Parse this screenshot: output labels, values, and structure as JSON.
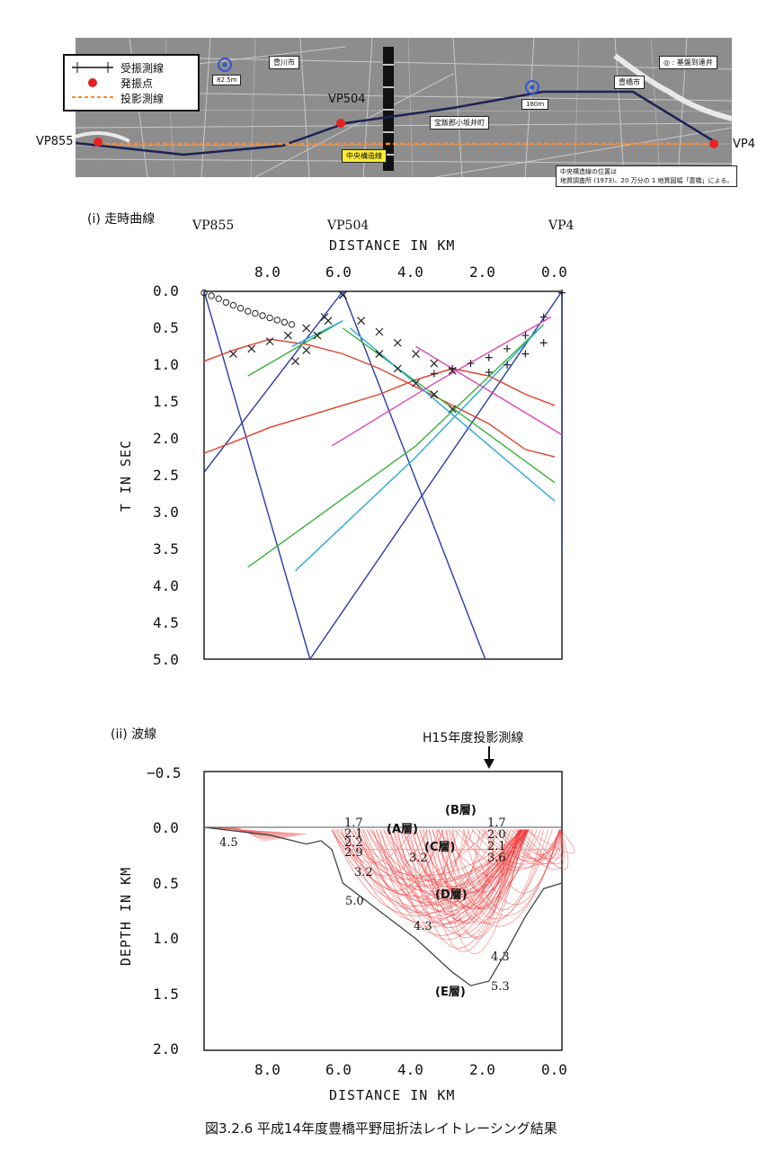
{
  "map": {
    "legend": {
      "receiver_line": "受振測線",
      "shot_point": "発振点",
      "projection_line": "投影測線"
    },
    "labels": {
      "vp855": "VP855",
      "vp504": "VP504",
      "vp4": "VP4",
      "toyokawa": "豊川市",
      "toyohashi": "豊橋市",
      "kosakai": "宝飯郡小坂井町",
      "fault_line": "中央構造線",
      "well_legend": "◎ : 基盤到達井",
      "well1_depth": "82.5m",
      "well2_depth": "180m",
      "note_line1": "中央構造線の位置は",
      "note_line2": "地質調査所 (1973)、20 万分の 1 地質図幅「豊橋」による。"
    }
  },
  "section_i": {
    "label": "(i)  走時曲線",
    "vp_labels": {
      "vp855": "VP855",
      "vp504": "VP504",
      "vp4": "VP4"
    },
    "x_axis_label": "DISTANCE  IN  KM",
    "y_axis_label": "T  IN  SEC",
    "x_ticks": [
      "8.0",
      "6.0",
      "4.0",
      "2.0",
      "0.0"
    ],
    "y_ticks": [
      "0.0",
      "0.5",
      "1.0",
      "1.5",
      "2.0",
      "2.5",
      "3.0",
      "3.5",
      "4.0",
      "4.5",
      "5.0"
    ]
  },
  "section_ii": {
    "label": "(ii)  波線",
    "projection_label": "H15年度投影測線",
    "x_axis_label": "DISTANCE  IN  KM",
    "y_axis_label": "DEPTH  IN  KM",
    "x_ticks": [
      "8.0",
      "6.0",
      "4.0",
      "2.0",
      "0.0"
    ],
    "y_ticks": [
      "−0.5",
      "0.0",
      "0.5",
      "1.0",
      "1.5",
      "2.0"
    ],
    "layers": {
      "A": "(A層)",
      "B": "(B層)",
      "C": "(C層)",
      "D": "(D層)",
      "E": "(E層)"
    },
    "velocities": {
      "v17a": "1.7",
      "v21a": "2.1",
      "v22": "2.2",
      "v29": "2.9",
      "v32a": "3.2",
      "v50": "5.0",
      "v45": "4.5",
      "v32b": "3.2",
      "v43a": "4.3",
      "v17b": "1.7",
      "v20": "2.0",
      "v21b": "2.1",
      "v36": "3.6",
      "v43b": "4.3",
      "v53": "5.3"
    }
  },
  "caption": "図3.2.6  平成14年度豊橋平野屈折法レイトレーシング結果",
  "chart_data": [
    {
      "type": "line",
      "title": "走時曲線",
      "xlabel": "DISTANCE IN KM",
      "ylabel": "T IN SEC",
      "xlim": [
        9.8,
        0.0
      ],
      "ylim": [
        0.0,
        5.0
      ],
      "x_reversed": true,
      "y_reversed": true,
      "series": [
        {
          "color": "#2b3aa8",
          "x": [
            9.8,
            6.9
          ],
          "y": [
            0.0,
            5.0
          ]
        },
        {
          "color": "#2b3aa8",
          "x": [
            9.8,
            6.0
          ],
          "y": [
            2.46,
            0.0
          ]
        },
        {
          "color": "#2b3aa8",
          "x": [
            6.0,
            2.1
          ],
          "y": [
            0.0,
            5.0
          ]
        },
        {
          "color": "#2b3aa8",
          "x": [
            0.0,
            6.9
          ],
          "y": [
            0.0,
            5.0
          ]
        },
        {
          "color": "#2b3aa8",
          "x": [
            0.0,
            0.0
          ],
          "y": [
            0.0,
            3.55
          ]
        },
        {
          "color": "#e0402a",
          "x": [
            9.8,
            9.0,
            8.0,
            7.0,
            6.0,
            5.0,
            4.0,
            3.0,
            2.0,
            1.0,
            0.2
          ],
          "y": [
            0.95,
            0.8,
            0.65,
            0.72,
            0.85,
            1.05,
            1.3,
            1.55,
            1.8,
            2.15,
            2.25
          ]
        },
        {
          "color": "#e0402a",
          "x": [
            9.8,
            9.0,
            8.0,
            7.0,
            6.0,
            5.0,
            4.0,
            3.0,
            2.0,
            1.0,
            0.2
          ],
          "y": [
            2.2,
            2.05,
            1.85,
            1.7,
            1.55,
            1.4,
            1.2,
            1.05,
            1.15,
            1.4,
            1.55
          ]
        },
        {
          "color": "#3bb03b",
          "x": [
            8.6,
            6.0
          ],
          "y": [
            1.15,
            0.4
          ]
        },
        {
          "color": "#3bb03b",
          "x": [
            8.6,
            4.0,
            0.5
          ],
          "y": [
            3.75,
            2.1,
            0.45
          ]
        },
        {
          "color": "#3bb03b",
          "x": [
            6.0,
            0.2
          ],
          "y": [
            0.5,
            2.6
          ]
        },
        {
          "color": "#2aa8d8",
          "x": [
            7.4,
            6.0
          ],
          "y": [
            0.75,
            0.4
          ]
        },
        {
          "color": "#2aa8d8",
          "x": [
            7.3,
            4.0,
            0.6
          ],
          "y": [
            3.8,
            2.25,
            0.5
          ]
        },
        {
          "color": "#2aa8d8",
          "x": [
            5.8,
            0.2
          ],
          "y": [
            0.5,
            2.85
          ]
        },
        {
          "color": "#e045b8",
          "x": [
            6.3,
            3.5,
            0.3
          ],
          "y": [
            2.1,
            1.25,
            0.35
          ]
        },
        {
          "color": "#e045b8",
          "x": [
            4.0,
            0.0
          ],
          "y": [
            0.75,
            1.95
          ]
        }
      ],
      "picks": [
        {
          "marker": "o",
          "x": [
            9.8,
            9.6,
            9.4,
            9.2,
            9.0,
            8.8,
            8.6,
            8.4,
            8.2,
            8.0,
            7.8,
            7.6,
            7.4
          ],
          "y": [
            0.02,
            0.06,
            0.1,
            0.15,
            0.19,
            0.23,
            0.27,
            0.3,
            0.33,
            0.36,
            0.39,
            0.42,
            0.45
          ]
        },
        {
          "marker": "x",
          "x": [
            9.0,
            8.5,
            8.0,
            7.5,
            7.0,
            6.5,
            6.0
          ],
          "y": [
            0.85,
            0.78,
            0.68,
            0.6,
            0.5,
            0.35,
            0.05
          ]
        },
        {
          "marker": "x",
          "x": [
            7.3,
            7.0,
            6.7,
            6.4
          ],
          "y": [
            0.95,
            0.8,
            0.6,
            0.4
          ]
        },
        {
          "marker": "x",
          "x": [
            6.0,
            5.5,
            5.0,
            4.5,
            4.0,
            3.5,
            3.0
          ],
          "y": [
            0.05,
            0.4,
            0.55,
            0.7,
            0.85,
            0.98,
            1.08
          ]
        },
        {
          "marker": "x",
          "x": [
            5.0,
            4.5,
            4.0,
            3.5,
            3.0
          ],
          "y": [
            0.85,
            1.05,
            1.25,
            1.4,
            1.6
          ]
        },
        {
          "marker": "+",
          "x": [
            0.0,
            0.5,
            1.0,
            1.5,
            2.0,
            2.5,
            3.0,
            3.5
          ],
          "y": [
            0.02,
            0.35,
            0.6,
            0.78,
            0.9,
            0.98,
            1.05,
            1.12
          ]
        },
        {
          "marker": "+",
          "x": [
            0.5,
            1.0,
            1.5,
            2.0
          ],
          "y": [
            0.7,
            0.85,
            1.0,
            1.1
          ]
        }
      ]
    },
    {
      "type": "line",
      "title": "波線",
      "xlabel": "DISTANCE IN KM",
      "ylabel": "DEPTH IN KM",
      "xlim": [
        9.8,
        0.0
      ],
      "ylim": [
        -0.5,
        2.0
      ],
      "x_reversed": true,
      "series": [
        {
          "color": "#444444",
          "x": [
            9.8,
            8.0,
            7.0,
            6.6,
            6.3,
            6.0,
            5.0,
            4.0,
            3.0,
            2.5,
            2.0,
            1.5,
            1.0,
            0.5,
            0.0
          ],
          "y": [
            0.0,
            0.07,
            0.15,
            0.12,
            0.2,
            0.5,
            0.75,
            1.0,
            1.3,
            1.42,
            1.38,
            1.1,
            0.8,
            0.55,
            0.5
          ]
        },
        {
          "color": "#555555",
          "x": [
            9.8,
            0.0
          ],
          "y": [
            0.0,
            0.0
          ]
        },
        {
          "color": "#ff9090",
          "x": [
            6.0,
            0.0
          ],
          "y": [
            0.2,
            0.2
          ]
        }
      ]
    }
  ]
}
